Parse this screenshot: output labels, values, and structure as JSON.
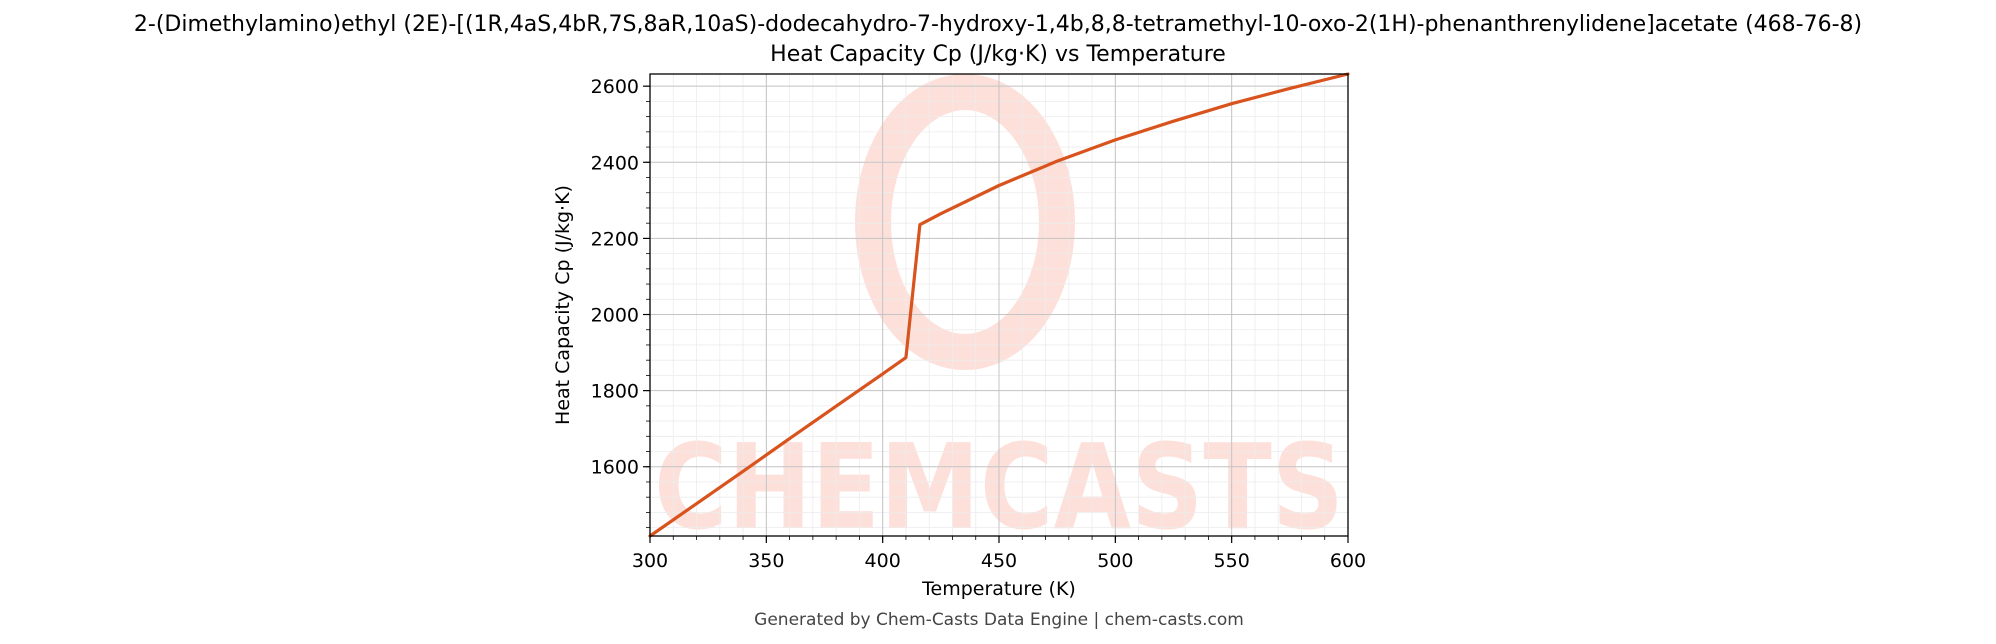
{
  "chart_data": {
    "type": "line",
    "title": "2-(Dimethylamino)ethyl (2E)-[(1R,4aS,4bR,7S,8aR,10aS)-dodecahydro-7-hydroxy-1,4b,8,8-tetramethyl-10-oxo-2(1H)-phenanthrenylidene]acetate (468-76-8)",
    "subtitle": "Heat Capacity Cp (J/kg·K) vs Temperature",
    "xlabel": "Temperature (K)",
    "ylabel": "Heat Capacity Cp (J/kg·K)",
    "xlim": [
      300,
      600
    ],
    "ylim": [
      1418,
      2632
    ],
    "x_ticks": [
      300,
      350,
      400,
      450,
      500,
      550,
      600
    ],
    "y_ticks": [
      1600,
      1800,
      2000,
      2200,
      2400,
      2600
    ],
    "grid": true,
    "minor_grid": true,
    "legend": "none",
    "series": [
      {
        "color": "#d9531e",
        "points": [
          [
            300,
            1418
          ],
          [
            320,
            1503
          ],
          [
            340,
            1588
          ],
          [
            360,
            1674
          ],
          [
            380,
            1759
          ],
          [
            400,
            1844
          ],
          [
            410,
            1887
          ],
          [
            416,
            2236
          ],
          [
            425,
            2265
          ],
          [
            450,
            2339
          ],
          [
            475,
            2403
          ],
          [
            500,
            2459
          ],
          [
            525,
            2508
          ],
          [
            550,
            2554
          ],
          [
            575,
            2594
          ],
          [
            600,
            2632
          ]
        ]
      }
    ]
  },
  "watermark": {
    "text": "CHEMCASTS",
    "color": "#fde0da"
  },
  "footer": "Generated by Chem-Casts Data Engine | chem-casts.com"
}
